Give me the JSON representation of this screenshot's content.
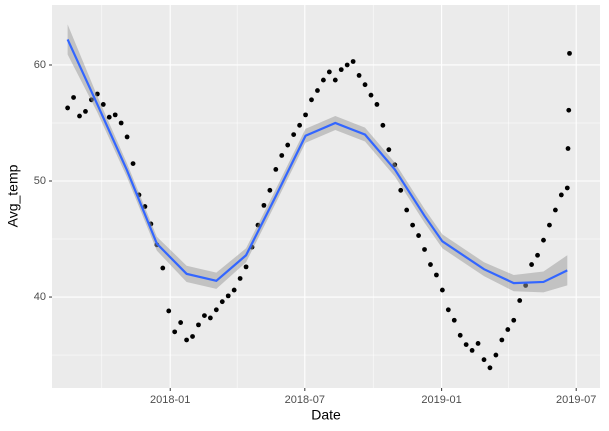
{
  "chart_data": {
    "type": "scatter",
    "x_label": "Date",
    "y_label": "Avg_temp",
    "color": "#000000",
    "x": [
      "2017-08-16",
      "2017-08-24",
      "2017-09-01",
      "2017-09-09",
      "2017-09-17",
      "2017-09-25",
      "2017-10-03",
      "2017-10-11",
      "2017-10-19",
      "2017-10-27",
      "2017-11-04",
      "2017-11-12",
      "2017-11-20",
      "2017-11-28",
      "2017-12-06",
      "2017-12-14",
      "2017-12-22",
      "2017-12-30",
      "2018-01-07",
      "2018-01-15",
      "2018-01-23",
      "2018-01-31",
      "2018-02-08",
      "2018-02-16",
      "2018-02-24",
      "2018-03-04",
      "2018-03-12",
      "2018-03-20",
      "2018-03-28",
      "2018-04-05",
      "2018-04-13",
      "2018-04-21",
      "2018-04-29",
      "2018-05-07",
      "2018-05-15",
      "2018-05-23",
      "2018-05-31",
      "2018-06-08",
      "2018-06-16",
      "2018-06-24",
      "2018-07-02",
      "2018-07-10",
      "2018-07-18",
      "2018-07-26",
      "2018-08-03",
      "2018-08-11",
      "2018-08-19",
      "2018-08-27",
      "2018-09-04",
      "2018-09-12",
      "2018-09-20",
      "2018-09-28",
      "2018-10-06",
      "2018-10-14",
      "2018-10-22",
      "2018-10-30",
      "2018-11-07",
      "2018-11-15",
      "2018-11-23",
      "2018-12-01",
      "2018-12-09",
      "2018-12-17",
      "2018-12-25",
      "2019-01-02",
      "2019-01-10",
      "2019-01-18",
      "2019-01-26",
      "2019-02-03",
      "2019-02-11",
      "2019-02-19",
      "2019-02-27",
      "2019-03-07",
      "2019-03-15",
      "2019-03-23",
      "2019-03-31",
      "2019-04-08",
      "2019-04-16",
      "2019-04-24",
      "2019-05-02",
      "2019-05-10",
      "2019-05-18",
      "2019-05-26",
      "2019-06-03",
      "2019-06-11",
      "2019-06-19",
      "2019-06-20",
      "2019-06-21",
      "2019-06-22"
    ],
    "values": [
      56.3,
      57.2,
      55.6,
      56.0,
      57.0,
      57.5,
      56.6,
      55.5,
      55.7,
      55.0,
      53.8,
      51.5,
      48.8,
      47.8,
      46.3,
      44.5,
      42.5,
      38.8,
      37.0,
      37.8,
      36.3,
      36.6,
      37.6,
      38.4,
      38.2,
      38.9,
      39.6,
      40.1,
      40.6,
      41.6,
      42.6,
      44.3,
      46.2,
      47.9,
      49.2,
      51.0,
      52.2,
      53.1,
      54.0,
      54.8,
      55.7,
      57.0,
      57.8,
      58.7,
      59.4,
      58.7,
      59.6,
      60.0,
      60.3,
      59.1,
      58.3,
      57.4,
      56.6,
      54.8,
      52.7,
      51.4,
      49.2,
      47.5,
      46.2,
      45.3,
      44.1,
      42.8,
      41.9,
      40.6,
      38.9,
      38.0,
      36.7,
      35.9,
      35.4,
      36.0,
      34.6,
      33.9,
      35.0,
      36.3,
      37.2,
      38.0,
      39.7,
      41.0,
      42.8,
      43.6,
      44.9,
      46.2,
      47.5,
      48.8,
      49.4,
      52.8,
      56.1,
      61.0
    ],
    "smooth": {
      "type": "line",
      "color": "#3366ff",
      "band_color": "#999999",
      "x": [
        "2017-08-16",
        "2017-09-25",
        "2017-11-04",
        "2017-12-14",
        "2018-01-23",
        "2018-03-04",
        "2018-04-13",
        "2018-05-23",
        "2018-07-02",
        "2018-08-11",
        "2018-09-20",
        "2018-10-30",
        "2018-12-09",
        "2019-01-02",
        "2019-02-27",
        "2019-04-08",
        "2019-05-18",
        "2019-06-19"
      ],
      "values": [
        62.2,
        56.6,
        50.9,
        44.6,
        42.0,
        41.4,
        43.6,
        48.7,
        53.9,
        55.0,
        54.0,
        51.0,
        47.0,
        44.8,
        42.4,
        41.2,
        41.3,
        42.3
      ],
      "lower": [
        60.9,
        55.9,
        50.3,
        44.0,
        41.3,
        40.7,
        43.0,
        48.1,
        53.3,
        54.4,
        53.4,
        50.4,
        46.4,
        44.2,
        41.8,
        40.5,
        40.4,
        41.0
      ],
      "upper": [
        63.5,
        57.3,
        51.5,
        45.2,
        42.7,
        42.1,
        44.2,
        49.3,
        54.5,
        55.6,
        54.6,
        51.6,
        47.6,
        45.4,
        43.0,
        41.9,
        42.2,
        43.6
      ]
    },
    "xlim": [
      "2017-07-26",
      "2019-08-02"
    ],
    "xticks": [
      {
        "value": "2018-01-01",
        "label": "2018-01"
      },
      {
        "value": "2018-07-01",
        "label": "2018-07"
      },
      {
        "value": "2019-01-01",
        "label": "2019-01"
      },
      {
        "value": "2019-07-01",
        "label": "2019-07"
      }
    ],
    "minor_xgrid": [
      "2017-10-01",
      "2018-04-01",
      "2018-10-01",
      "2019-04-01"
    ],
    "ylim": [
      32.16,
      65.17
    ],
    "yticks": [
      40,
      50,
      60
    ],
    "minor_ygrid": [
      35,
      45,
      55
    ],
    "grid": true
  }
}
